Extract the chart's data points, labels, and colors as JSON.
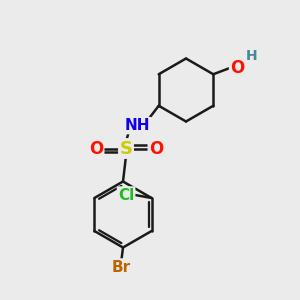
{
  "bg_color": "#ebebeb",
  "bond_color": "#1a1a1a",
  "bond_width": 1.8,
  "atom_colors": {
    "O": "#ff1100",
    "N": "#1100ee",
    "S": "#cccc00",
    "Cl": "#22bb22",
    "Br": "#bb6600",
    "H": "#448899",
    "C": "#1a1a1a"
  },
  "font_size_small": 9,
  "font_size_med": 11,
  "font_size_large": 13
}
